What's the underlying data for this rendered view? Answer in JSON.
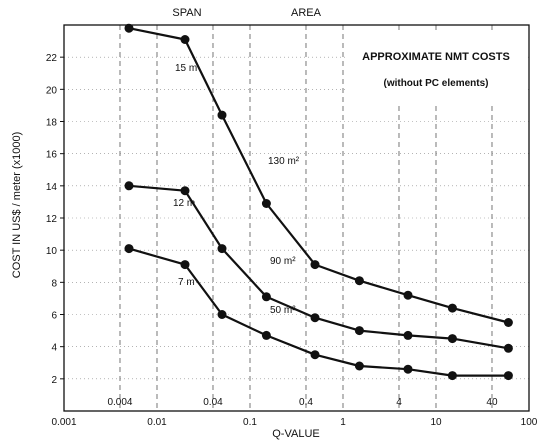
{
  "chart_data": {
    "type": "line",
    "title": "APPROXIMATE NMT COSTS",
    "subtitle": "(without PC elements)",
    "xlabel": "Q-VALUE",
    "ylabel": "COST IN US$ / meter (x1000)",
    "header_labels": [
      "SPAN",
      "AREA"
    ],
    "x_scale": "log",
    "xlim": [
      0.001,
      100
    ],
    "ylim": [
      0,
      24
    ],
    "xticks": [
      {
        "v": 0.001,
        "label": "0.001"
      },
      {
        "v": 0.004,
        "label": "0.004"
      },
      {
        "v": 0.01,
        "label": "0.01"
      },
      {
        "v": 0.04,
        "label": "0.04"
      },
      {
        "v": 0.1,
        "label": "0.1"
      },
      {
        "v": 0.4,
        "label": "0.4"
      },
      {
        "v": 1,
        "label": "1"
      },
      {
        "v": 4,
        "label": "4"
      },
      {
        "v": 10,
        "label": "10"
      },
      {
        "v": 40,
        "label": "40"
      },
      {
        "v": 100,
        "label": "100"
      }
    ],
    "yticks": [
      2,
      4,
      6,
      8,
      10,
      12,
      14,
      16,
      18,
      20,
      22
    ],
    "x": [
      0.005,
      0.02,
      0.05,
      0.15,
      0.5,
      1.5,
      5,
      15,
      60
    ],
    "series": [
      {
        "span_label": "15 m",
        "area_label": "130 m²",
        "values": [
          23.8,
          23.1,
          18.4,
          12.9,
          9.1,
          8.1,
          7.2,
          6.4,
          5.5
        ]
      },
      {
        "span_label": "12 m",
        "area_label": "90 m²",
        "values": [
          14.0,
          13.7,
          10.1,
          7.1,
          5.8,
          5.0,
          4.7,
          4.5,
          3.9
        ]
      },
      {
        "span_label": "7 m",
        "area_label": "50 m²",
        "values": [
          10.1,
          9.1,
          6.0,
          4.7,
          3.5,
          2.8,
          2.6,
          2.2,
          2.2
        ]
      }
    ],
    "grid": true,
    "legend": "none"
  }
}
